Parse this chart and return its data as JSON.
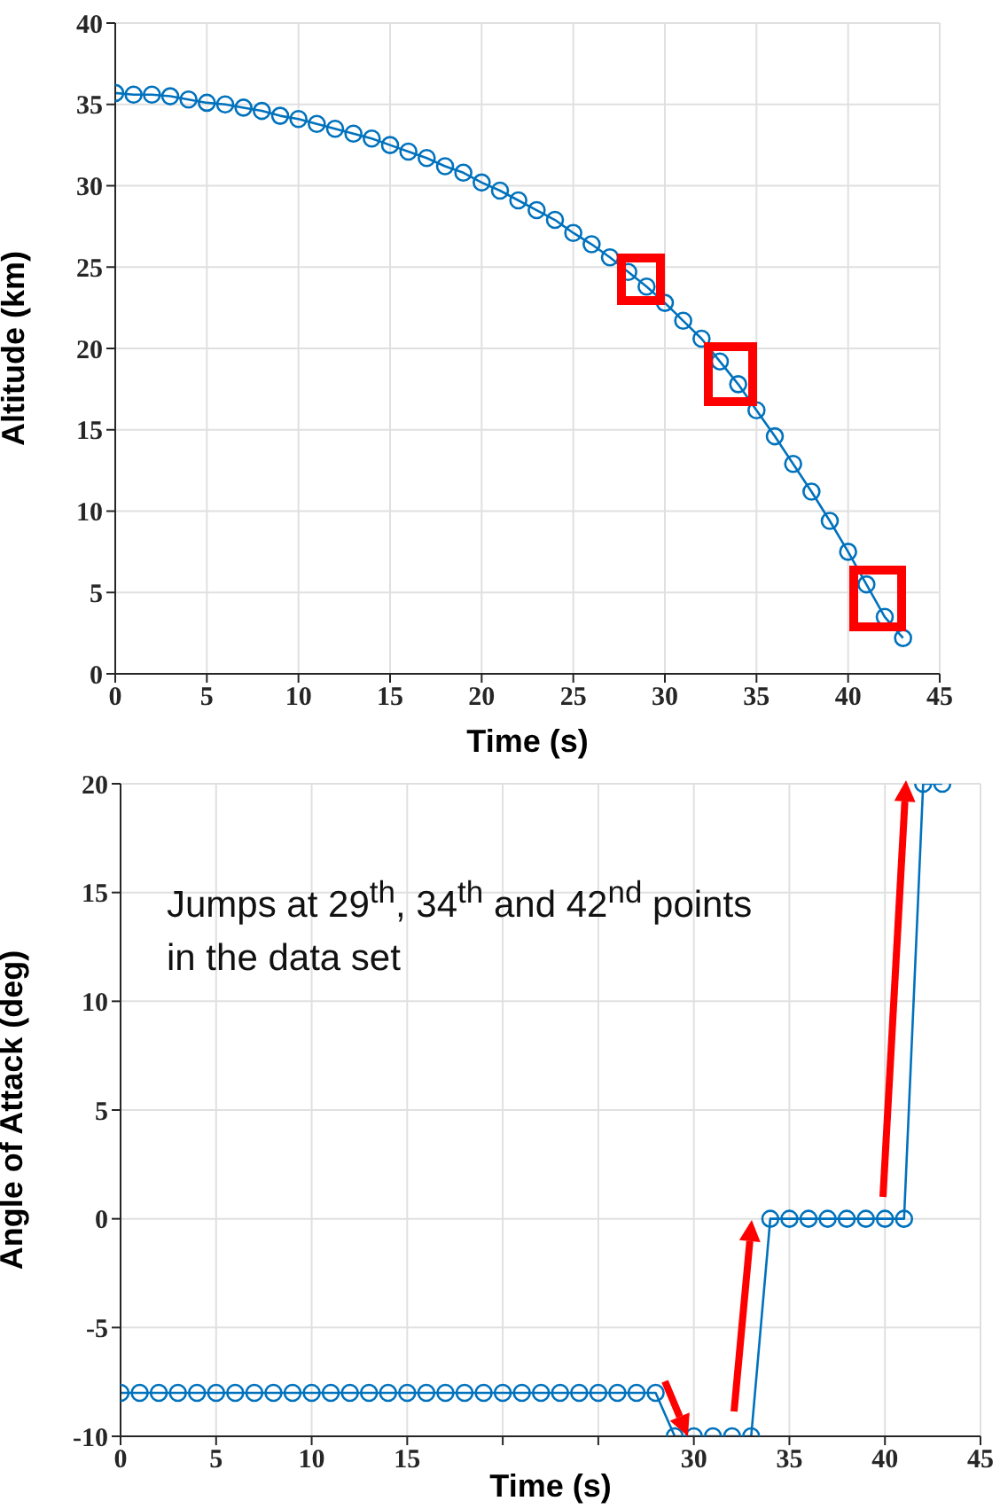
{
  "chart_data": [
    {
      "type": "line",
      "xlabel": "Time (s)",
      "ylabel": "Altitude (km)",
      "x": [
        0,
        1,
        2,
        3,
        4,
        5,
        6,
        7,
        8,
        9,
        10,
        11,
        12,
        13,
        14,
        15,
        16,
        17,
        18,
        19,
        20,
        21,
        22,
        23,
        24,
        25,
        26,
        27,
        28,
        29,
        30,
        31,
        32,
        33,
        34,
        35,
        36,
        37,
        38,
        39,
        40,
        41,
        42,
        43
      ],
      "series": [
        {
          "color": "#0072bd",
          "values": [
            35.7,
            35.6,
            35.6,
            35.5,
            35.3,
            35.1,
            35.0,
            34.8,
            34.6,
            34.3,
            34.1,
            33.8,
            33.5,
            33.2,
            32.9,
            32.5,
            32.1,
            31.7,
            31.2,
            30.8,
            30.2,
            29.7,
            29.1,
            28.5,
            27.9,
            27.1,
            26.4,
            25.6,
            24.7,
            23.8,
            22.8,
            21.7,
            20.6,
            19.2,
            17.8,
            16.2,
            14.6,
            12.9,
            11.2,
            9.4,
            7.5,
            5.5,
            3.5,
            2.2
          ]
        }
      ],
      "xlim": [
        0,
        45
      ],
      "xticks": [
        0,
        5,
        10,
        15,
        20,
        25,
        30,
        35,
        40,
        45
      ],
      "ylim": [
        0,
        40
      ],
      "yticks": [
        0,
        5,
        10,
        15,
        20,
        25,
        30,
        35,
        40
      ],
      "grid": true,
      "marker": "circle",
      "line_style": "solid"
    },
    {
      "type": "line",
      "xlabel": "Time (s)",
      "ylabel": "Angle of Attack (deg)",
      "annotations": [
        "Jumps at 29$^{th}$, 34$^{th}$ and 42$^{nd}$ points in the data set"
      ],
      "x": [
        0,
        1,
        2,
        3,
        4,
        5,
        6,
        7,
        8,
        9,
        10,
        11,
        12,
        13,
        14,
        15,
        16,
        17,
        18,
        19,
        20,
        21,
        22,
        23,
        24,
        25,
        26,
        27,
        28,
        29,
        30,
        31,
        32,
        33,
        34,
        35,
        36,
        37,
        38,
        39,
        40,
        41,
        42,
        43
      ],
      "series": [
        {
          "color": "#0072bd",
          "values": [
            -8,
            -8,
            -8,
            -8,
            -8,
            -8,
            -8,
            -8,
            -8,
            -8,
            -8,
            -8,
            -8,
            -8,
            -8,
            -8,
            -8,
            -8,
            -8,
            -8,
            -8,
            -8,
            -8,
            -8,
            -8,
            -8,
            -8,
            -8,
            -8,
            -10,
            -10,
            -10,
            -10,
            -10,
            0,
            0,
            0,
            0,
            0,
            0,
            0,
            0,
            20,
            20
          ]
        }
      ],
      "xlim": [
        0,
        45
      ],
      "xticks": [
        0,
        5,
        10,
        15,
        {
          "value": 20,
          "label": null
        },
        {
          "value": 25,
          "label": null
        },
        30,
        35,
        40,
        45
      ],
      "ylim": [
        -10,
        20
      ],
      "yticks": [
        -10,
        -5,
        0,
        5,
        10,
        15,
        20
      ],
      "grid": true,
      "marker": "circle",
      "line_style": "solid"
    }
  ]
}
